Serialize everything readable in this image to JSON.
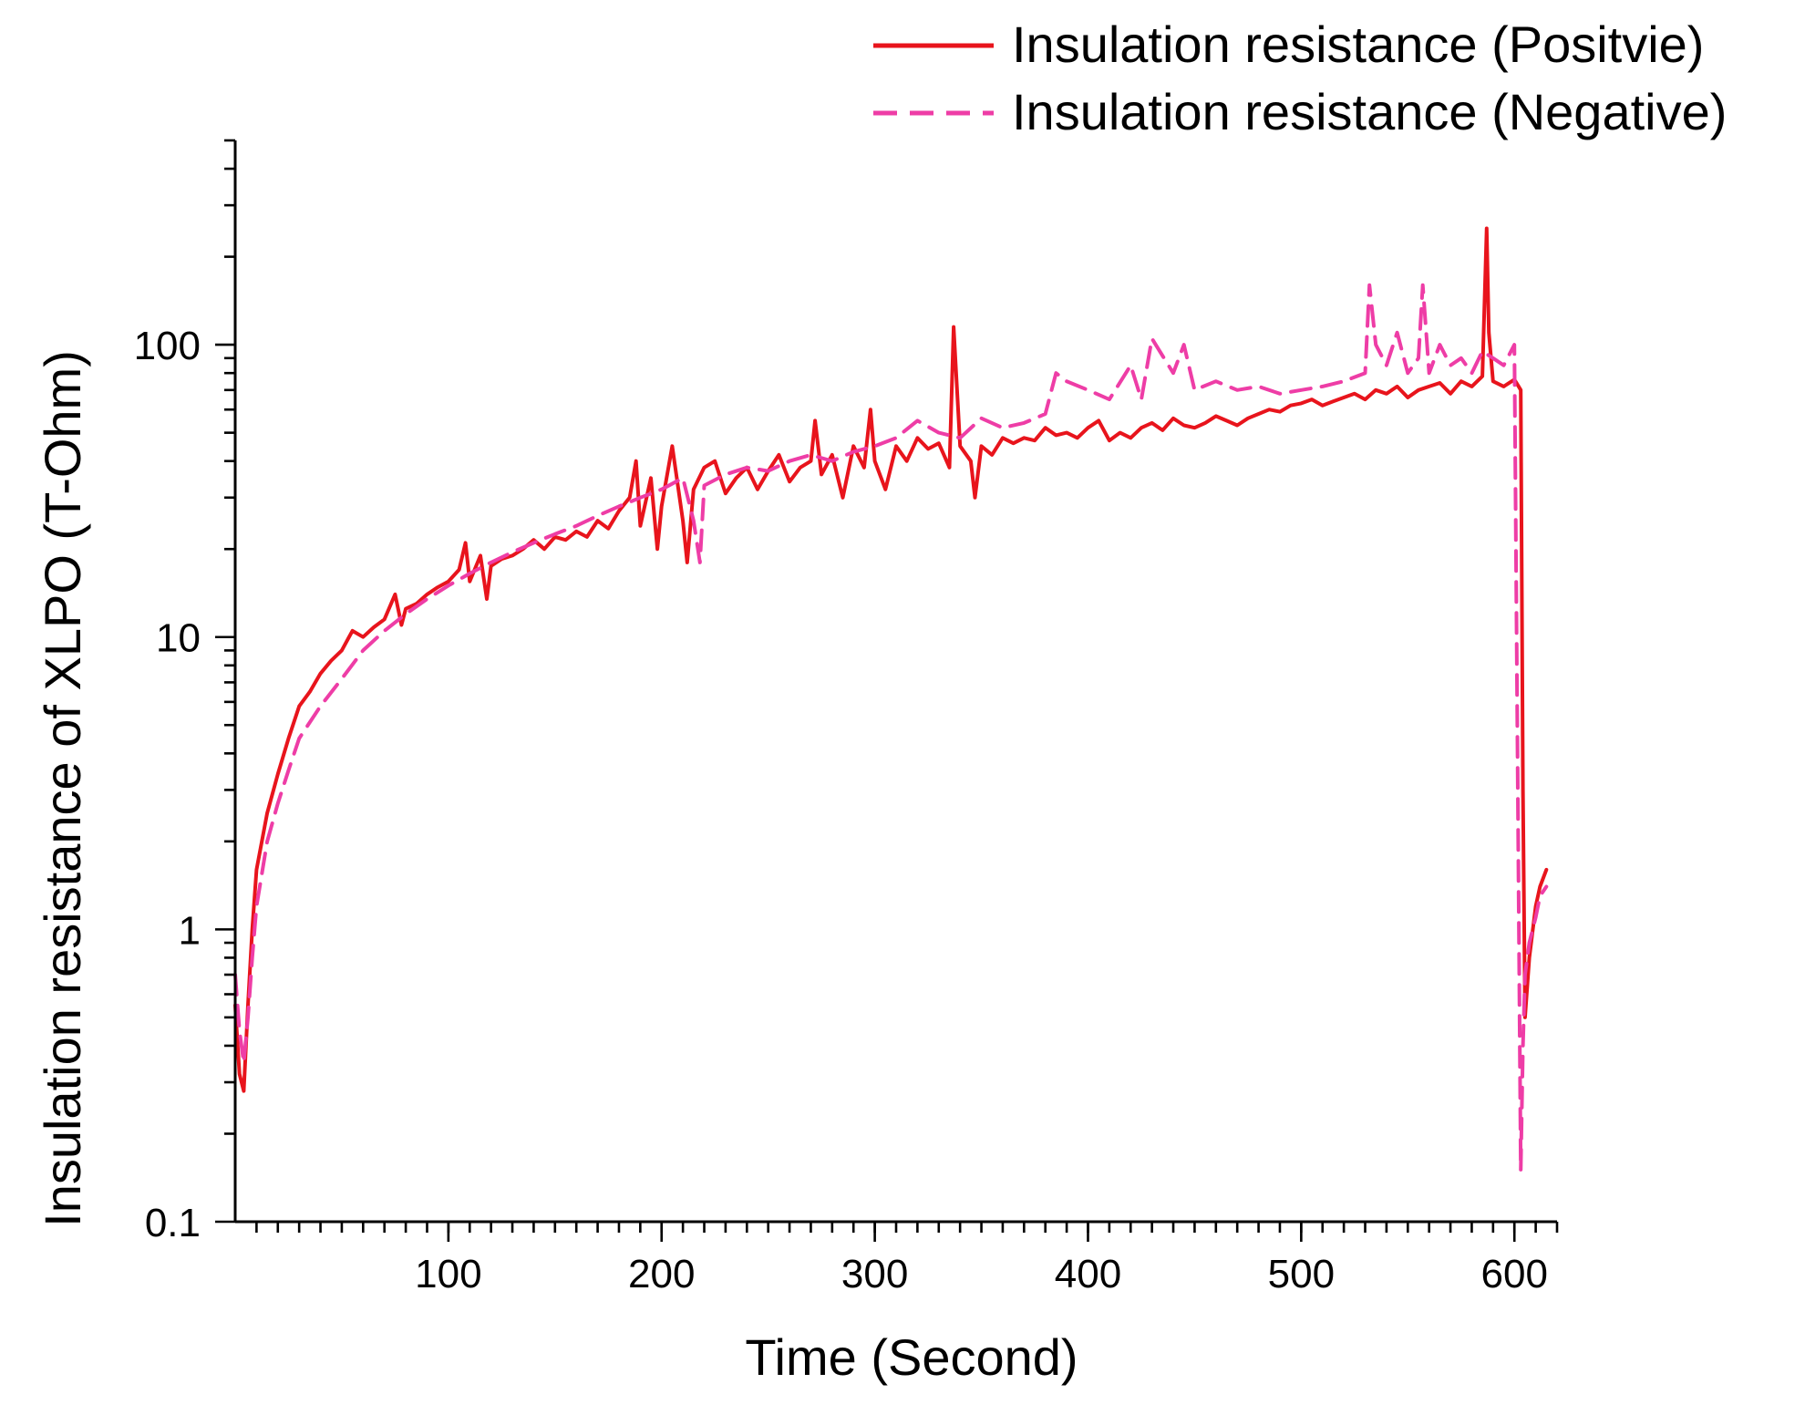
{
  "chart_data": {
    "type": "line",
    "title": "",
    "xlabel": "Time (Second)",
    "ylabel": "Insulation resistance of XLPO (T-Ohm)",
    "xlim": [
      0,
      620
    ],
    "ylim": [
      0.1,
      500
    ],
    "yscale": "log",
    "grid": false,
    "legend": "top-right",
    "x_ticks": [
      100,
      200,
      300,
      400,
      500,
      600
    ],
    "x_tick_labels": [
      "100",
      "200",
      "300",
      "400",
      "500",
      "600"
    ],
    "x_minor_step": 10,
    "y_ticks": [
      0.1,
      1,
      10,
      100
    ],
    "y_tick_labels": [
      "0.1",
      "1",
      "10",
      "100"
    ],
    "series": [
      {
        "name": "Insulation resistance (Positvie)",
        "color": "#e8141c",
        "dash": "solid",
        "x": [
          0,
          2,
          4,
          6,
          8,
          10,
          15,
          20,
          25,
          30,
          35,
          40,
          45,
          50,
          55,
          60,
          65,
          70,
          75,
          78,
          80,
          85,
          90,
          95,
          100,
          105,
          108,
          110,
          115,
          118,
          120,
          125,
          130,
          135,
          140,
          145,
          150,
          155,
          160,
          165,
          170,
          175,
          180,
          185,
          188,
          190,
          195,
          198,
          200,
          205,
          210,
          212,
          215,
          220,
          225,
          230,
          235,
          240,
          245,
          250,
          255,
          260,
          265,
          270,
          272,
          275,
          280,
          285,
          290,
          295,
          298,
          300,
          305,
          310,
          315,
          320,
          325,
          330,
          335,
          337,
          340,
          345,
          347,
          350,
          355,
          360,
          365,
          370,
          375,
          380,
          385,
          390,
          395,
          400,
          405,
          410,
          415,
          420,
          425,
          430,
          435,
          440,
          445,
          450,
          455,
          460,
          465,
          470,
          475,
          480,
          485,
          490,
          495,
          500,
          505,
          510,
          515,
          520,
          525,
          530,
          535,
          540,
          545,
          550,
          555,
          560,
          565,
          570,
          575,
          580,
          585,
          587,
          588,
          590,
          595,
          600,
          602,
          603,
          604,
          605,
          607,
          610,
          612,
          615
        ],
        "values": [
          0.55,
          0.32,
          0.28,
          0.55,
          1.0,
          1.6,
          2.5,
          3.4,
          4.5,
          5.8,
          6.5,
          7.5,
          8.3,
          9.0,
          10.5,
          10.0,
          10.8,
          11.5,
          14.0,
          11.0,
          12.5,
          13.0,
          14.0,
          14.8,
          15.5,
          17.0,
          21.0,
          15.5,
          19.0,
          13.5,
          17.5,
          18.5,
          19.0,
          20.0,
          21.5,
          20.0,
          22.0,
          21.5,
          23.0,
          22.0,
          25.0,
          23.5,
          27.0,
          30.0,
          40.0,
          24.0,
          35.0,
          20.0,
          28.0,
          45.0,
          25.0,
          18.0,
          32.0,
          38.0,
          40.0,
          31.0,
          35.0,
          38.0,
          32.0,
          37.0,
          42.0,
          34.0,
          38.0,
          40.0,
          55.0,
          36.0,
          42.0,
          30.0,
          45.0,
          38.0,
          60.0,
          40.0,
          32.0,
          45.0,
          40.0,
          48.0,
          44.0,
          46.0,
          38.0,
          115.0,
          45.0,
          40.0,
          30.0,
          45.0,
          42.0,
          48.0,
          46.0,
          48.0,
          47.0,
          52.0,
          49.0,
          50.0,
          48.0,
          52.0,
          55.0,
          47.0,
          50.0,
          48.0,
          52.0,
          54.0,
          51.0,
          56.0,
          53.0,
          52.0,
          54.0,
          57.0,
          55.0,
          53.0,
          56.0,
          58.0,
          60.0,
          59.0,
          62.0,
          63.0,
          65.0,
          62.0,
          64.0,
          66.0,
          68.0,
          65.0,
          70.0,
          68.0,
          72.0,
          66.0,
          70.0,
          72.0,
          74.0,
          68.0,
          75.0,
          72.0,
          78.0,
          250.0,
          110.0,
          75.0,
          72.0,
          76.0,
          72.0,
          70.0,
          3.0,
          0.5,
          0.8,
          1.2,
          1.4,
          1.6
        ]
      },
      {
        "name": "Insulation resistance (Negative)",
        "color": "#ee3da6",
        "dash": "dashed",
        "x": [
          0,
          2,
          4,
          6,
          8,
          10,
          15,
          20,
          25,
          30,
          40,
          50,
          60,
          70,
          80,
          90,
          100,
          110,
          120,
          130,
          140,
          150,
          160,
          170,
          180,
          190,
          200,
          210,
          215,
          218,
          220,
          230,
          240,
          250,
          260,
          270,
          280,
          290,
          300,
          310,
          320,
          330,
          340,
          350,
          360,
          370,
          380,
          385,
          390,
          400,
          410,
          420,
          425,
          430,
          440,
          445,
          450,
          460,
          470,
          480,
          490,
          500,
          510,
          520,
          530,
          532,
          535,
          540,
          545,
          550,
          555,
          557,
          560,
          565,
          570,
          575,
          580,
          585,
          590,
          595,
          600,
          603,
          604,
          605,
          607,
          610,
          612,
          615
        ],
        "values": [
          0.7,
          0.45,
          0.35,
          0.5,
          0.8,
          1.2,
          2.0,
          2.7,
          3.5,
          4.5,
          5.8,
          7.2,
          9.0,
          10.5,
          12.0,
          13.5,
          15.0,
          16.5,
          18.0,
          19.5,
          21.0,
          22.5,
          24.0,
          26.0,
          28.0,
          30.0,
          32.0,
          35.0,
          25.0,
          18.0,
          33.0,
          36.0,
          38.0,
          37.0,
          40.0,
          42.0,
          40.0,
          43.0,
          45.0,
          48.0,
          55.0,
          50.0,
          48.0,
          56.0,
          52.0,
          54.0,
          58.0,
          80.0,
          75.0,
          70.0,
          65.0,
          85.0,
          65.0,
          105.0,
          80.0,
          100.0,
          70.0,
          75.0,
          70.0,
          72.0,
          68.0,
          70.0,
          72.0,
          75.0,
          80.0,
          160.0,
          100.0,
          85.0,
          110.0,
          80.0,
          90.0,
          160.0,
          80.0,
          100.0,
          85.0,
          90.0,
          80.0,
          95.0,
          90.0,
          85.0,
          100.0,
          0.15,
          0.4,
          0.7,
          0.9,
          1.1,
          1.3,
          1.4
        ]
      }
    ]
  }
}
